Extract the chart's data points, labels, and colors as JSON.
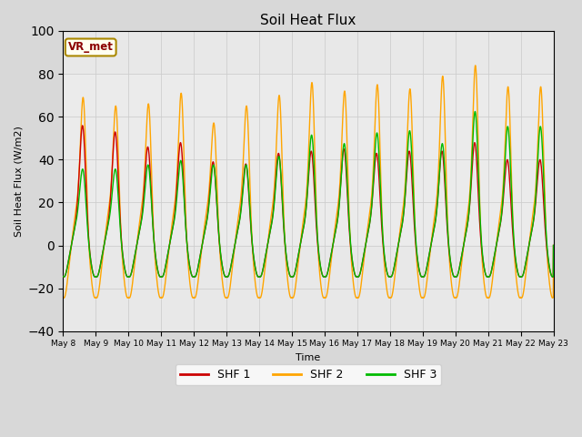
{
  "title": "Soil Heat Flux",
  "ylabel": "Soil Heat Flux (W/m2)",
  "xlabel": "Time",
  "ylim": [
    -40,
    100
  ],
  "yticks": [
    -40,
    -20,
    0,
    20,
    40,
    60,
    80,
    100
  ],
  "xtick_labels": [
    "May 8",
    "May 9",
    "May 10",
    "May 11",
    "May 12",
    "May 13",
    "May 14",
    "May 15",
    "May 16",
    "May 17",
    "May 18",
    "May 19",
    "May 20",
    "May 21",
    "May 22",
    "May 23"
  ],
  "colors": {
    "SHF1": "#cc0000",
    "SHF2": "#ffa500",
    "SHF3": "#00bb00"
  },
  "grid_color": "#cccccc",
  "bg_color": "#d8d8d8",
  "plot_bg": "#e8e8e8",
  "vr_met_label": "VR_met",
  "vr_met_color": "#8B0000",
  "vr_met_bg": "#fffff0",
  "shf1_day_peak": [
    58,
    55,
    48,
    50,
    41,
    40,
    45,
    46,
    47,
    45,
    46,
    46,
    50,
    42,
    42
  ],
  "shf2_day_peak": [
    74,
    70,
    71,
    76,
    62,
    70,
    75,
    81,
    77,
    80,
    78,
    84,
    89,
    79,
    79
  ],
  "shf3_day_peak": [
    38,
    38,
    40,
    42,
    40,
    40,
    44,
    54,
    50,
    55,
    56,
    50,
    65,
    58,
    58
  ],
  "shf1_night_min": -15,
  "shf2_night_min": -25,
  "shf3_night_min": -15,
  "line_width": 1.0,
  "n_days": 15
}
